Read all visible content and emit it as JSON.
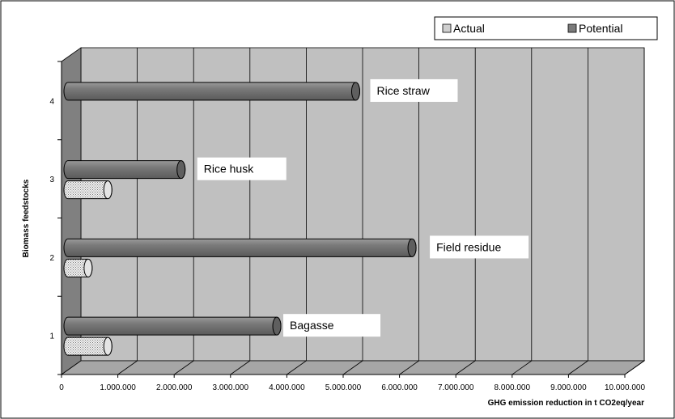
{
  "chart_data": {
    "type": "bar",
    "orientation": "horizontal",
    "three_d": true,
    "categories": [
      "1",
      "2",
      "3",
      "4"
    ],
    "series": [
      {
        "name": "Actual",
        "values": [
          650000,
          300000,
          650000,
          0
        ],
        "pattern": "dotted",
        "color": "#c8c8c8"
      },
      {
        "name": "Potential",
        "values": [
          3650000,
          6050000,
          1950000,
          5050000
        ],
        "pattern": "solid",
        "color": "#7a7a7a"
      }
    ],
    "annotations": [
      {
        "text": "Bagasse",
        "category": "1"
      },
      {
        "text": "Field residue",
        "category": "2"
      },
      {
        "text": "Rice husk",
        "category": "3"
      },
      {
        "text": "Rice straw",
        "category": "4"
      }
    ],
    "xlabel": "GHG emission reduction in t CO2eq/year",
    "ylabel": "Biomass feedstocks",
    "xlim": [
      0,
      10000000
    ],
    "x_tick_labels": [
      "0",
      "1.000.000",
      "2.000.000",
      "3.000.000",
      "4.000.000",
      "5.000.000",
      "6.000.000",
      "7.000.000",
      "8.000.000",
      "9.000.000",
      "10.000.000"
    ],
    "grid": true,
    "legend_position": "top-right",
    "colors": {
      "wall": "#c0c0c0",
      "floor": "#a6a6a6",
      "side_wall": "#808080"
    }
  }
}
